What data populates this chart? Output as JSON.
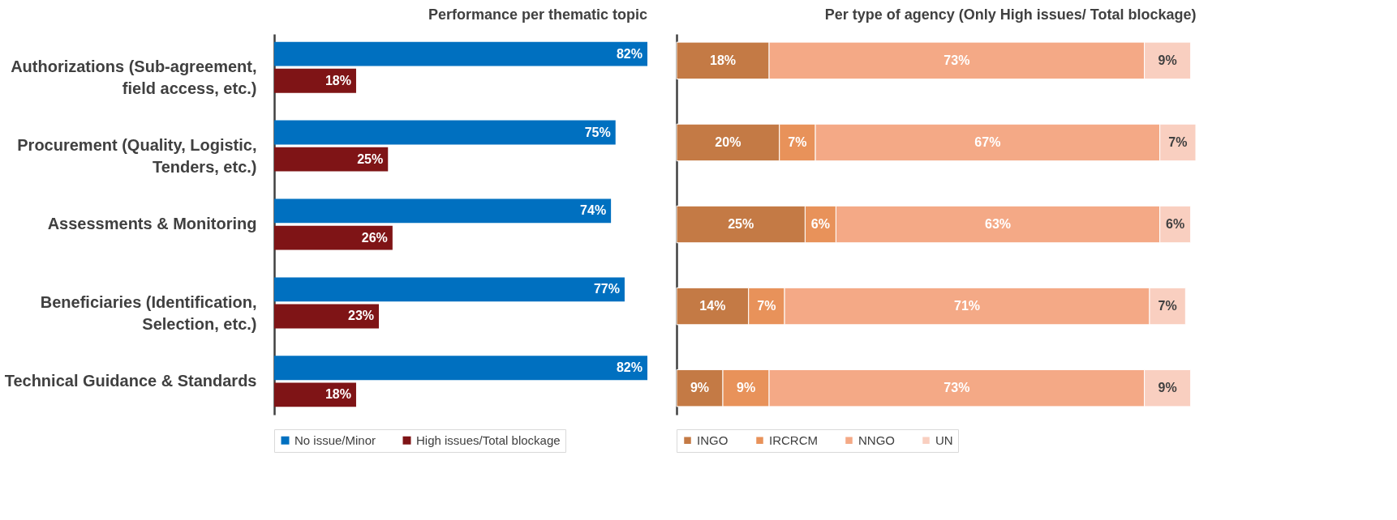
{
  "chart_data": [
    {
      "type": "bar",
      "orientation": "horizontal",
      "title": "Performance per thematic topic",
      "legend": "bottom",
      "categories": [
        "Authorizations (Sub-agreement, field access, etc.)",
        "Procurement (Quality, Logistic, Tenders, etc.)",
        "Assessments & Monitoring",
        "Beneficiaries (Identification, Selection, etc.)",
        "Technical Guidance & Standards"
      ],
      "series": [
        {
          "name": "No issue/Minor",
          "color": "#0070c0",
          "values": [
            82,
            75,
            74,
            77,
            82
          ],
          "value_labels": [
            "82%",
            "75%",
            "74%",
            "77%",
            "82%"
          ]
        },
        {
          "name": "High issues/Total blockage",
          "color": "#7f1416",
          "values": [
            18,
            25,
            26,
            23,
            18
          ],
          "value_labels": [
            "18%",
            "25%",
            "26%",
            "23%",
            "18%"
          ]
        }
      ]
    },
    {
      "type": "bar",
      "orientation": "horizontal",
      "stacked": true,
      "title": "Per type of agency (Only High issues/ Total blockage)",
      "legend": "bottom",
      "tick_labels": false,
      "categories": [
        null,
        null,
        null,
        null,
        null
      ],
      "series": [
        {
          "name": "INGO",
          "color": "#c47a45",
          "values": [
            18,
            20,
            25,
            14,
            9
          ],
          "value_labels": [
            "18%",
            "20%",
            "25%",
            "14%",
            "9%"
          ]
        },
        {
          "name": "IRCRCM",
          "color": "#e8925a",
          "values": [
            null,
            7,
            6,
            7,
            9
          ],
          "value_labels": [
            null,
            "7%",
            "6%",
            "7%",
            "9%"
          ]
        },
        {
          "name": "NNGO",
          "color": "#f4a986",
          "values": [
            73,
            67,
            63,
            71,
            73
          ],
          "value_labels": [
            "73%",
            "67%",
            "63%",
            "71%",
            "73%"
          ]
        },
        {
          "name": "UN",
          "color": "#f9cfc0",
          "values": [
            9,
            7,
            6,
            7,
            9
          ],
          "value_labels": [
            "9%",
            "7%",
            "6%",
            "7%",
            "9%"
          ]
        }
      ]
    }
  ]
}
